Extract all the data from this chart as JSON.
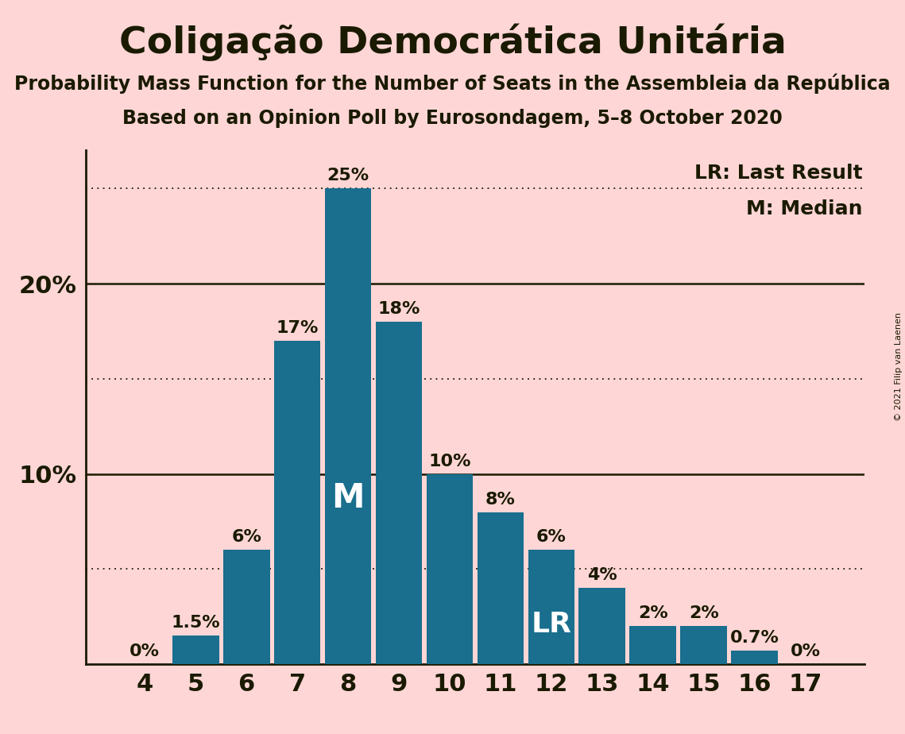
{
  "title": "Coligação Democrática Unitária",
  "subtitle1": "Probability Mass Function for the Number of Seats in the Assembleia da República",
  "subtitle2": "Based on an Opinion Poll by Eurosondagem, 5–8 October 2020",
  "copyright": "© 2021 Filip van Laenen",
  "seats": [
    4,
    5,
    6,
    7,
    8,
    9,
    10,
    11,
    12,
    13,
    14,
    15,
    16,
    17
  ],
  "probabilities": [
    0.0,
    1.5,
    6.0,
    17.0,
    25.0,
    18.0,
    10.0,
    8.0,
    6.0,
    4.0,
    2.0,
    2.0,
    0.7,
    0.0
  ],
  "bar_color": "#1a6e8e",
  "background_color": "#ffd6d6",
  "text_color": "#1a1a00",
  "median_seat": 8,
  "last_result_seat": 12,
  "ylim": [
    0,
    27
  ],
  "ylabel_ticks": [
    10,
    20
  ],
  "dotted_lines": [
    5,
    15,
    25
  ],
  "solid_lines": [
    10,
    20
  ],
  "bar_labels": [
    "0%",
    "1.5%",
    "6%",
    "17%",
    "25%",
    "18%",
    "10%",
    "8%",
    "6%",
    "4%",
    "2%",
    "2%",
    "0.7%",
    "0%"
  ],
  "title_fontsize": 34,
  "subtitle_fontsize": 17,
  "label_fontsize": 16,
  "tick_fontsize": 22,
  "ylabel_fontsize": 22,
  "annotation_fontsize_M": 30,
  "annotation_fontsize_LR": 26,
  "legend_fontsize": 18,
  "copyright_fontsize": 8,
  "bar_width": 0.92
}
